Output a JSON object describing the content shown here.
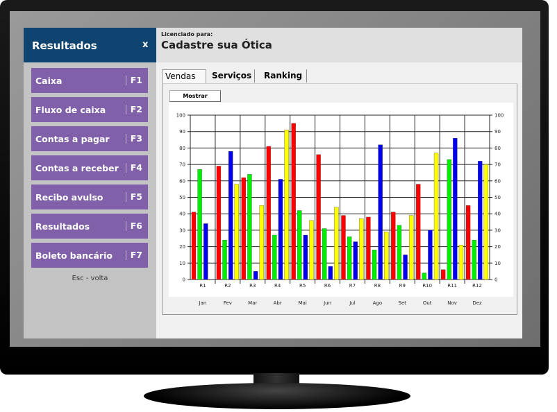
{
  "sidebar": {
    "title": "Resultados",
    "close": "x",
    "items": [
      {
        "label": "Caixa",
        "key": "F1"
      },
      {
        "label": "Fluxo de caixa",
        "key": "F2"
      },
      {
        "label": "Contas a pagar",
        "key": "F3"
      },
      {
        "label": "Contas a receber",
        "key": "F4"
      },
      {
        "label": "Recibo avulso",
        "key": "F5"
      },
      {
        "label": "Resultados",
        "key": "F6"
      },
      {
        "label": "Boleto bancário",
        "key": "F7"
      }
    ],
    "footer": "Esc - volta"
  },
  "header": {
    "licensed_label": "Licenciado para:",
    "company": "Cadastre sua Ótica"
  },
  "tabs": [
    {
      "label": "Vendas"
    },
    {
      "label": "Serviços"
    },
    {
      "label": "Ranking"
    }
  ],
  "show_button": "Mostrar",
  "colors": {
    "sidebar_header": "#0f4470",
    "menu": "#8060a8"
  },
  "chart_data": {
    "type": "bar",
    "categories": [
      "R1",
      "R2",
      "R3",
      "R4",
      "R5",
      "R6",
      "R7",
      "R8",
      "R9",
      "R10",
      "R11",
      "R12"
    ],
    "months": [
      "Jan",
      "Fev",
      "Mar",
      "Abr",
      "Mai",
      "Jun",
      "Jul",
      "Ago",
      "Set",
      "Out",
      "Nov",
      "Dez"
    ],
    "ylim": [
      0,
      100
    ],
    "yticks": [
      0,
      10,
      20,
      30,
      40,
      50,
      60,
      70,
      80,
      90,
      100
    ],
    "grid": true,
    "series": [
      {
        "name": "red",
        "color": "#ff0000",
        "values": [
          41,
          69,
          62,
          81,
          95,
          76,
          39,
          38,
          41,
          58,
          6,
          45
        ]
      },
      {
        "name": "green",
        "color": "#00ee00",
        "values": [
          67,
          24,
          64,
          27,
          42,
          31,
          26,
          18,
          33,
          4,
          73,
          24
        ]
      },
      {
        "name": "blue",
        "color": "#0000ee",
        "values": [
          34,
          78,
          5,
          61,
          27,
          8,
          23,
          82,
          15,
          30,
          86,
          72
        ]
      },
      {
        "name": "yellow",
        "color": "#ffff00",
        "values": [
          0,
          58,
          45,
          91,
          36,
          44,
          37,
          29,
          39,
          77,
          21,
          70
        ]
      }
    ]
  }
}
